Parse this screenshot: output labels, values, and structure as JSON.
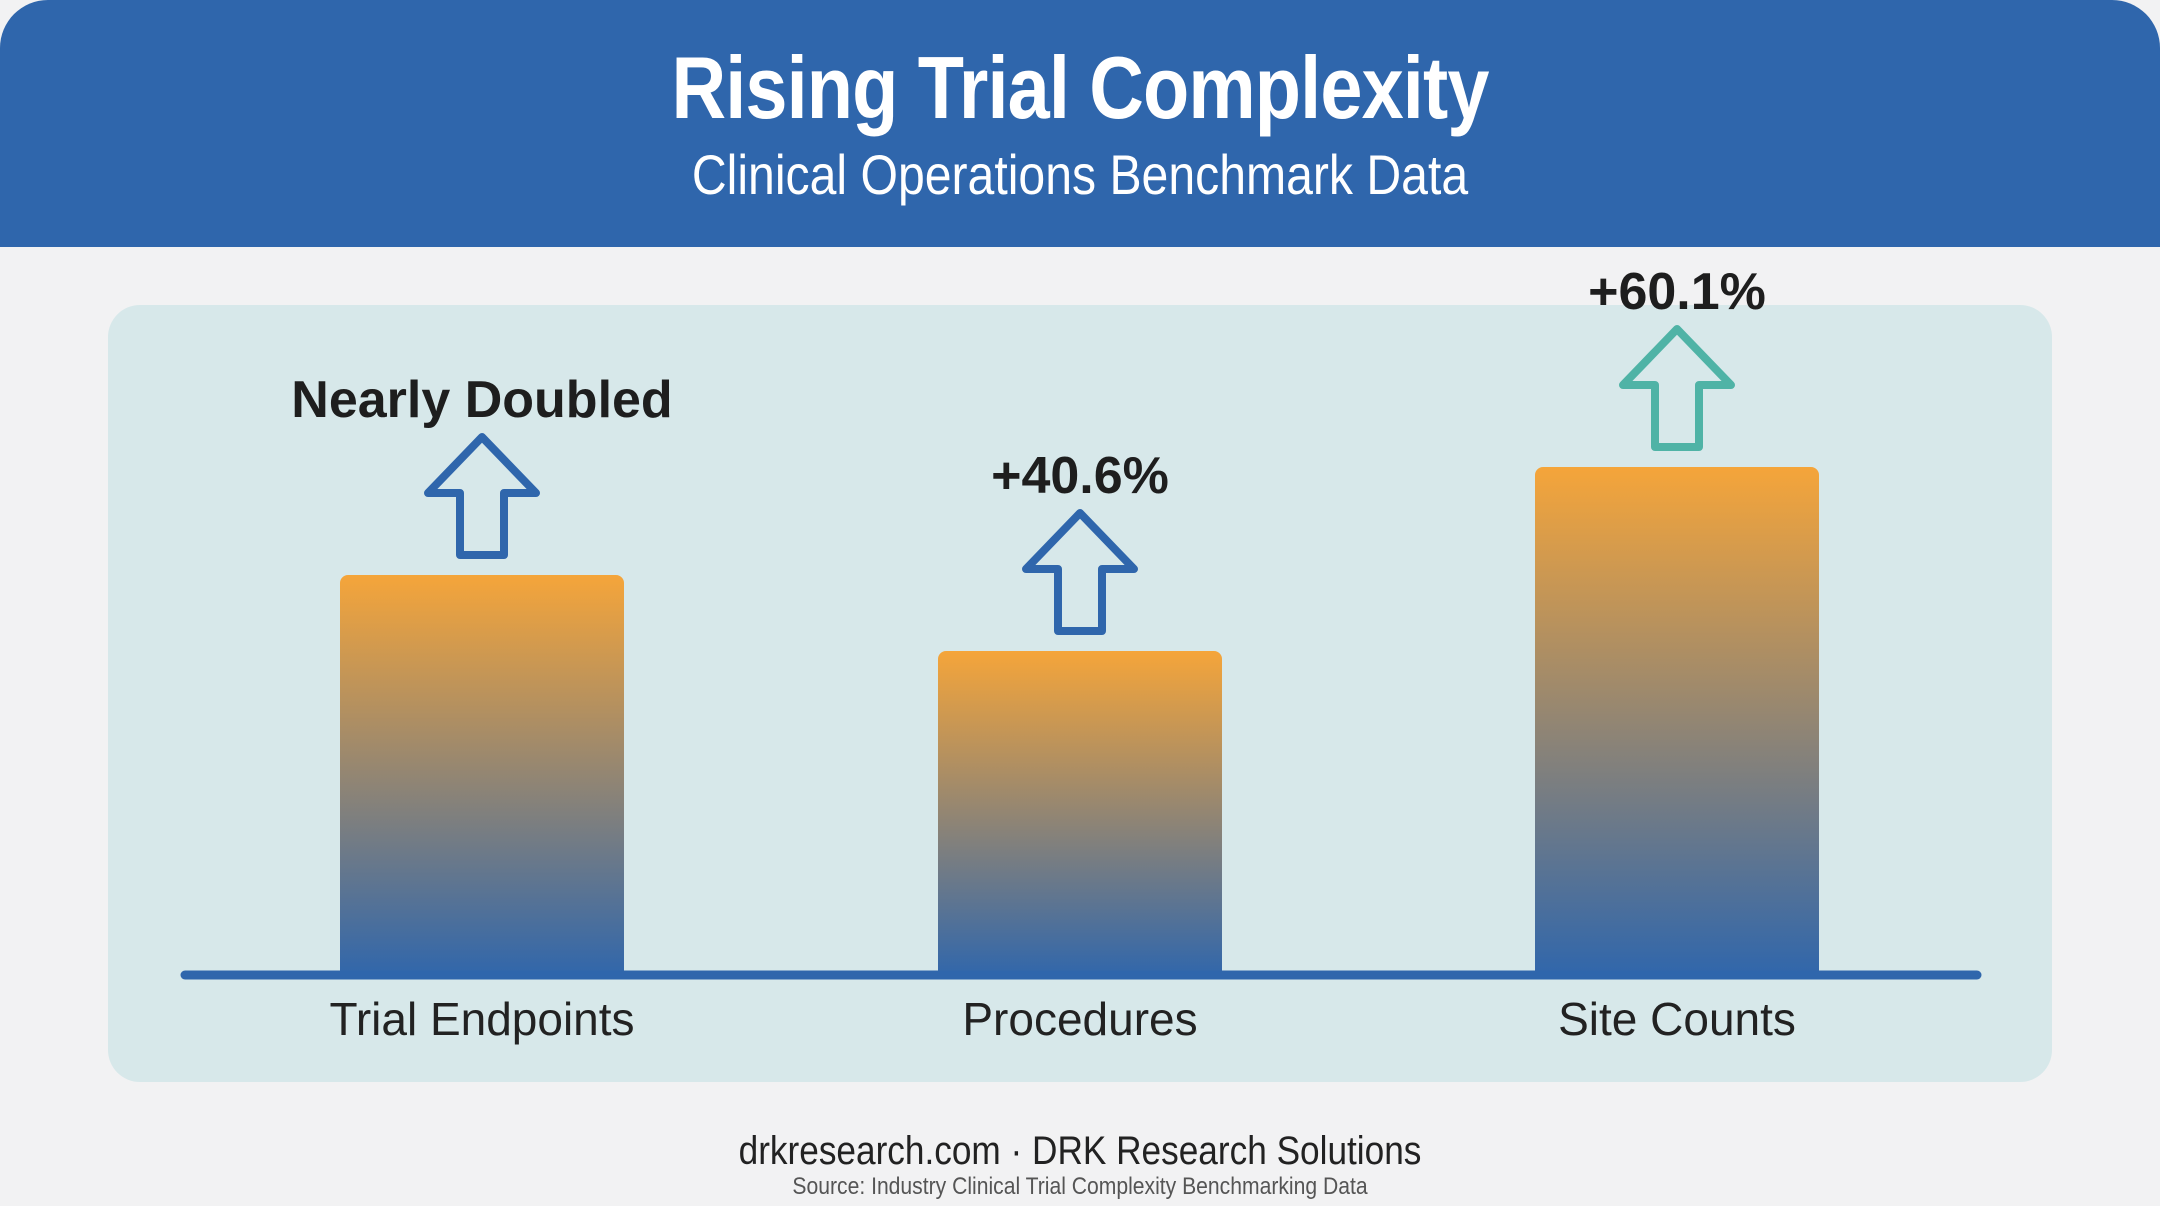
{
  "header": {
    "title": "Rising Trial Complexity",
    "subtitle": "Clinical Operations Benchmark Data"
  },
  "footer": {
    "site": "drkresearch.com · DRK Research Solutions",
    "source": "Source: Industry Clinical Trial Complexity Benchmarking Data"
  },
  "colors": {
    "header_bg": "#2f66ac",
    "bar_top": "#f5a53a",
    "bar_bottom": "#2f66ac",
    "axis": "#2f66ac",
    "arrow_blue": "#2f66ac",
    "arrow_teal": "#4fb3a6"
  },
  "chart_data": {
    "type": "bar",
    "categories": [
      "Trial Endpoints",
      "Procedures",
      "Site Counts"
    ],
    "values": [
      100,
      81,
      127
    ],
    "annotations": [
      "Nearly Doubled",
      "+40.6%",
      "+60.1%"
    ],
    "arrow_colors": [
      "#2f66ac",
      "#2f66ac",
      "#4fb3a6"
    ],
    "arrow_icons": [
      "up-arrow-icon",
      "up-arrow-icon",
      "up-arrow-icon"
    ],
    "ylim": [
      0,
      135
    ],
    "grid": false,
    "legend": "none"
  }
}
